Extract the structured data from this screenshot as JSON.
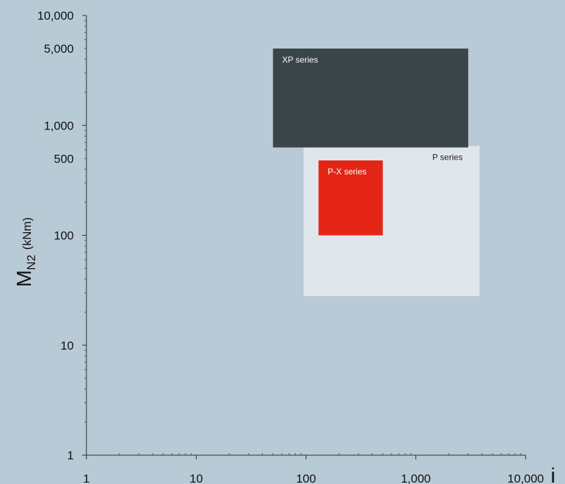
{
  "chart_data": {
    "type": "area",
    "x_scale": "log",
    "y_scale": "log",
    "xlim": [
      1,
      10000
    ],
    "ylim": [
      1,
      10000
    ],
    "grid": false,
    "xlabel": "i",
    "ylabel": {
      "main": "M",
      "subscript": "N2",
      "unit": "(kNm)"
    },
    "x_ticks": [
      {
        "value": 1,
        "label": "1"
      },
      {
        "value": 10,
        "label": "10"
      },
      {
        "value": 100,
        "label": "100"
      },
      {
        "value": 1000,
        "label": "1,000"
      },
      {
        "value": 10000,
        "label": "10,000"
      }
    ],
    "y_ticks": [
      {
        "value": 1,
        "label": "1"
      },
      {
        "value": 10,
        "label": "10"
      },
      {
        "value": 100,
        "label": "100"
      },
      {
        "value": 500,
        "label": "500"
      },
      {
        "value": 1000,
        "label": "1,000"
      },
      {
        "value": 5000,
        "label": "5,000"
      },
      {
        "value": 10000,
        "label": "10,000"
      }
    ],
    "regions": [
      {
        "name": "P series",
        "x_range": [
          95,
          3800
        ],
        "y_range": [
          28,
          650
        ],
        "color": "#dfe6ec",
        "label_color": "#222222",
        "label_anchor": "top-right"
      },
      {
        "name": "XP series",
        "x_range": [
          50,
          3000
        ],
        "y_range": [
          630,
          5000
        ],
        "color": "#3a4549",
        "label_color": "#ffffff",
        "label_anchor": "top-left"
      },
      {
        "name": "P-X series",
        "x_range": [
          130,
          500
        ],
        "y_range": [
          100,
          480
        ],
        "color": "#e42515",
        "label_color": "#ffffff",
        "label_anchor": "top-left"
      }
    ]
  }
}
